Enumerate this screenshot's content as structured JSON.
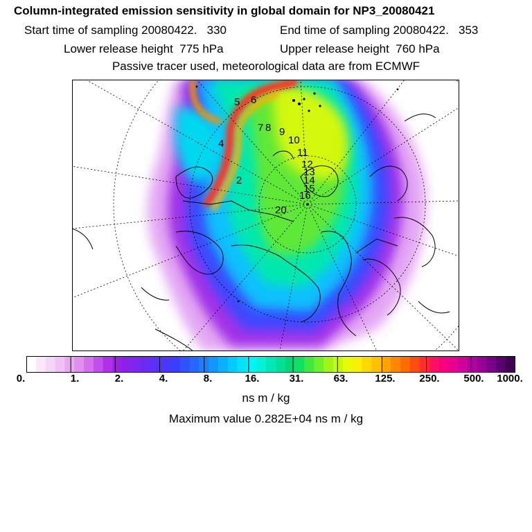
{
  "title": "Column-integrated emission sensitivity in global domain for NP3_20080421",
  "sampling": {
    "start": "Start time of sampling 20080422.   330",
    "end": "End time of sampling 20080422.   353"
  },
  "release": {
    "lower": "Lower release height  775 hPa",
    "upper": "Upper release height  760 hPa"
  },
  "tracer_note": "Passive tracer used, meteorological data are from ECMWF",
  "map": {
    "day_labels": [
      "5",
      "6",
      "7",
      "8",
      "9",
      "10",
      "11",
      "12",
      "13",
      "14",
      "15",
      "16",
      "4",
      "2",
      "20"
    ]
  },
  "colorbar": {
    "tick_labels": [
      "0.",
      "1.",
      "2.",
      "4.",
      "8.",
      "16.",
      "31.",
      "63.",
      "125.",
      "250.",
      "500.",
      "1000."
    ],
    "colors": [
      "#ffffff",
      "#fbe8fb",
      "#f6d6f8",
      "#f0c2f5",
      "#e8a8f2",
      "#df8ff0",
      "#d270ee",
      "#c24feb",
      "#b02fe8",
      "#9b1fe6",
      "#8a22ea",
      "#7a27ef",
      "#6a2cf3",
      "#5a31f7",
      "#4a36fb",
      "#3a3cff",
      "#2f52ff",
      "#2468ff",
      "#1a80ff",
      "#1198ff",
      "#08b2ff",
      "#00ccff",
      "#00e4ff",
      "#00f6f6",
      "#00f0d8",
      "#00e8b8",
      "#00e098",
      "#00d878",
      "#10e060",
      "#40e840",
      "#70f028",
      "#a0f418",
      "#c8f810",
      "#e8fa08",
      "#f8f000",
      "#ffd800",
      "#ffc000",
      "#ffa400",
      "#ff8800",
      "#ff6c00",
      "#ff4c10",
      "#ff2c30",
      "#ff1060",
      "#f80080",
      "#e80090",
      "#d0009a",
      "#b400a0",
      "#960096",
      "#780088",
      "#5a006e",
      "#3e0050"
    ]
  },
  "units": "ns m / kg",
  "maximum": "Maximum value  0.282E+04 ns m / kg"
}
